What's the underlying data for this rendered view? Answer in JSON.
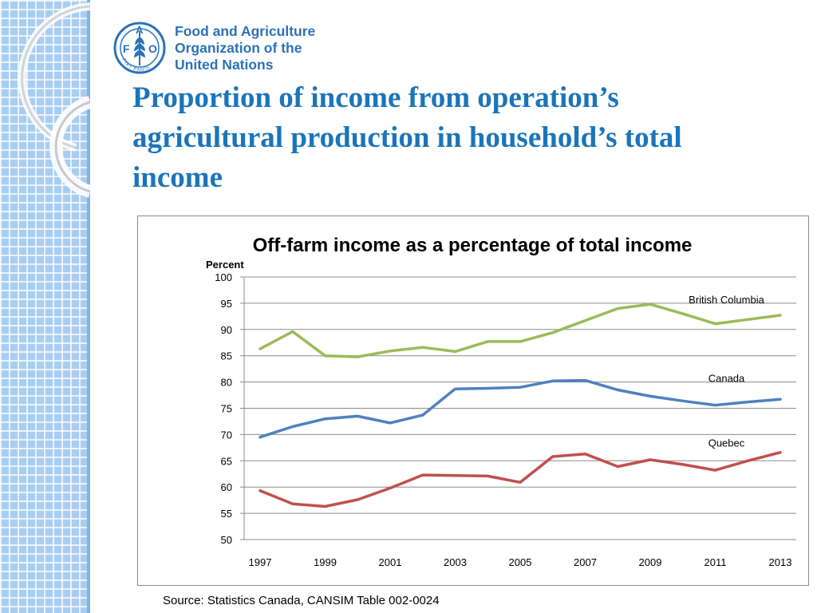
{
  "logo": {
    "icon": "fao-emblem-icon",
    "emblem_text": "FIAT PANIS",
    "emblem_letters": [
      "F",
      "A",
      "O"
    ],
    "line1": "Food and Agriculture",
    "line2": "Organization of the",
    "line3": "United Nations"
  },
  "slide": {
    "title_line1": "Proportion of income from operation’s",
    "title_line2": "agricultural production in household’s total",
    "title_line3": "income",
    "source": "Source: Statistics Canada, CANSIM Table 002-0024"
  },
  "colors": {
    "title": "#1a75bb",
    "strip": "#a9cdf1",
    "british_columbia": "#9bbb59",
    "canada": "#4f81bd",
    "quebec": "#c0504d",
    "grid": "#8c8c8c"
  },
  "chart_data": {
    "type": "line",
    "title": "Off-farm income as a percentage of total income",
    "ylabel": "Percent",
    "xlabel": "",
    "ylim": [
      50,
      100
    ],
    "yticks": [
      100,
      95,
      90,
      85,
      80,
      75,
      70,
      65,
      60,
      55,
      50
    ],
    "x": [
      1997,
      1998,
      1999,
      2000,
      2001,
      2002,
      2003,
      2004,
      2005,
      2006,
      2007,
      2008,
      2009,
      2010,
      2011,
      2012,
      2013
    ],
    "xtick_labels": [
      "1997",
      "1999",
      "2001",
      "2003",
      "2005",
      "2007",
      "2009",
      "2011",
      "2013"
    ],
    "grid": true,
    "legend": "direct labels",
    "series": [
      {
        "name": "British Columbia",
        "color": "#9bbb59",
        "values": [
          86.3,
          89.6,
          85.0,
          84.8,
          85.9,
          86.6,
          85.8,
          87.7,
          87.7,
          89.4,
          91.7,
          94.0,
          94.8,
          93.0,
          91.1,
          91.9,
          92.7
        ]
      },
      {
        "name": "Canada",
        "color": "#4f81bd",
        "values": [
          69.5,
          71.5,
          73.0,
          73.5,
          72.2,
          73.7,
          78.7,
          78.8,
          79.0,
          80.2,
          80.3,
          78.5,
          77.3,
          76.4,
          75.6,
          76.2,
          76.7
        ]
      },
      {
        "name": "Quebec",
        "color": "#c0504d",
        "values": [
          59.3,
          56.8,
          56.3,
          57.6,
          59.8,
          62.3,
          62.2,
          62.1,
          60.9,
          65.8,
          66.3,
          63.9,
          65.2,
          64.3,
          63.2,
          65.0,
          66.6
        ]
      }
    ]
  }
}
